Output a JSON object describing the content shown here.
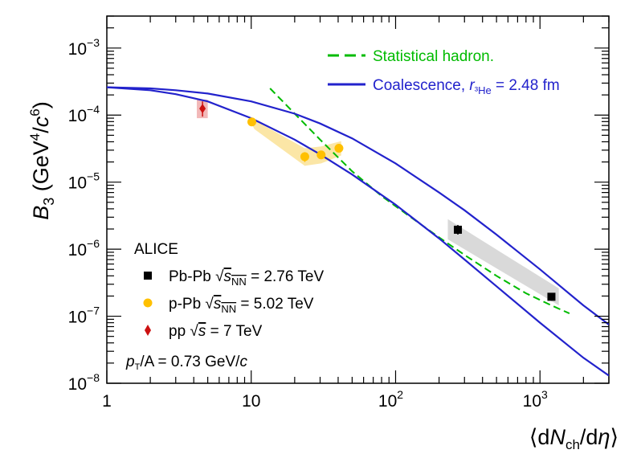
{
  "chart_data": {
    "type": "scatter",
    "xscale": "log",
    "yscale": "log",
    "xlim": [
      1,
      3000
    ],
    "ylim": [
      1e-08,
      0.003
    ],
    "grid": false,
    "x_ticks": [
      {
        "value": 1,
        "label": "1"
      },
      {
        "value": 10,
        "label": "10"
      },
      {
        "value": 100,
        "label": "10",
        "exp": "2"
      },
      {
        "value": 1000,
        "label": "10",
        "exp": "3"
      }
    ],
    "y_ticks": [
      {
        "value": 1e-08,
        "label": "10",
        "exp": "−8"
      },
      {
        "value": 1e-07,
        "label": "10",
        "exp": "−7"
      },
      {
        "value": 1e-06,
        "label": "10",
        "exp": "−6"
      },
      {
        "value": 1e-05,
        "label": "10",
        "exp": "−5"
      },
      {
        "value": 0.0001,
        "label": "10",
        "exp": "−4"
      },
      {
        "value": 0.001,
        "label": "10",
        "exp": "−3"
      }
    ],
    "xlabel": {
      "open": "⟨d",
      "N": "N",
      "sub": "ch",
      "mid": "/d",
      "eta": "η",
      "close": "⟩"
    },
    "ylabel": {
      "B": "B",
      "sub": "3",
      "rest1": " (GeV",
      "exp1": "4",
      "rest2": "/",
      "c": "c",
      "exp2": "6",
      "close": ")"
    },
    "experiment_label": "ALICE",
    "pt_label": {
      "p": "p",
      "sub": "T",
      "rest": "/A = 0.73 GeV/",
      "c": "c"
    },
    "models": [
      {
        "name": "Statistical hadron.",
        "color": "#00bb00",
        "style": "dashed",
        "x": [
          13.5,
          20,
          30,
          50,
          80,
          120,
          200,
          300,
          500,
          800,
          1200,
          1600
        ],
        "y": [
          0.00025,
          0.000105,
          4.3e-05,
          1.45e-05,
          6.2e-06,
          3.3e-06,
          1.5e-06,
          8.2e-07,
          4e-07,
          2.2e-07,
          1.45e-07,
          1.1e-07
        ]
      },
      {
        "name_main": "Coalescence, ",
        "name_r": "r",
        "name_sub": "³He",
        "name_tail": " = 2.48 fm",
        "color": "#2222cc",
        "style": "solid",
        "bands": [
          {
            "x": [
              1,
              2,
              3,
              5,
              10,
              20,
              30,
              50,
              100,
              200,
              300,
              500,
              1000,
              2000,
              3000
            ],
            "y": [
              0.00026,
              0.00025,
              0.000235,
              0.00021,
              0.00016,
              0.000105,
              7.5e-05,
              4.5e-05,
              1.9e-05,
              7e-06,
              3.8e-06,
              1.65e-06,
              5e-07,
              1.45e-07,
              7.5e-08
            ]
          },
          {
            "x": [
              1,
              2,
              3,
              5,
              10,
              20,
              30,
              50,
              100,
              200,
              300,
              500,
              1000,
              2000,
              3000
            ],
            "y": [
              0.00026,
              0.000235,
              0.000205,
              0.00016,
              9e-05,
              4.3e-05,
              2.6e-05,
              1.3e-05,
              4.6e-06,
              1.45e-06,
              7e-07,
              2.8e-07,
              8e-08,
              2.4e-08,
              1.3e-08
            ]
          }
        ]
      }
    ],
    "series": [
      {
        "name_main": "Pb-Pb ",
        "name_sqrt": "s",
        "name_sub": "NN",
        "name_tail": " = 2.76 TeV",
        "color": "#000000",
        "marker": "square",
        "points": [
          {
            "x": 270,
            "y": 1.95e-06,
            "err_lo": 1.65e-06,
            "err_hi": 2.3e-06
          },
          {
            "x": 1200,
            "y": 1.95e-07,
            "err_lo": 1.7e-07,
            "err_hi": 2.2e-07
          }
        ],
        "syst_band": [
          [
            230,
            2.8e-06
          ],
          [
            1350,
            2.6e-07
          ],
          [
            1350,
            1.45e-07
          ],
          [
            230,
            1.4e-06
          ]
        ],
        "syst_color": "#d9d9d9"
      },
      {
        "name_main": "p-Pb ",
        "name_sqrt": "s",
        "name_sub": "NN",
        "name_tail": " = 5.02 TeV",
        "color": "#ffc000",
        "marker": "circle",
        "points": [
          {
            "x": 10.1,
            "y": 7.9e-05,
            "err_lo": 7e-05,
            "err_hi": 8.8e-05
          },
          {
            "x": 23.5,
            "y": 2.4e-05,
            "err_lo": 2e-05,
            "err_hi": 2.8e-05
          },
          {
            "x": 30.5,
            "y": 2.55e-05,
            "err_lo": 2.2e-05,
            "err_hi": 2.9e-05
          },
          {
            "x": 40.5,
            "y": 3.2e-05,
            "err_lo": 2.9e-05,
            "err_hi": 3.5e-05
          }
        ],
        "syst_band": [
          [
            9.5,
            9.5e-05
          ],
          [
            23.5,
            3.2e-05
          ],
          [
            30.5,
            3.4e-05
          ],
          [
            42,
            4.1e-05
          ],
          [
            42,
            2.5e-05
          ],
          [
            30.5,
            1.9e-05
          ],
          [
            23.5,
            1.75e-05
          ],
          [
            10.5,
            6.2e-05
          ]
        ],
        "syst_color": "#fbe6a6"
      },
      {
        "name_main": "pp ",
        "name_sqrt": "s",
        "name_tail": " = 7 TeV",
        "color": "#cc1111",
        "marker": "diamond",
        "points": [
          {
            "x": 4.6,
            "y": 0.000125,
            "err_lo": 9.5e-05,
            "err_hi": 0.00016
          }
        ],
        "syst_box": {
          "x0": 4.2,
          "x1": 5.0,
          "y0": 9e-05,
          "y1": 0.00017
        },
        "syst_color": "#f2b8b8"
      }
    ]
  }
}
